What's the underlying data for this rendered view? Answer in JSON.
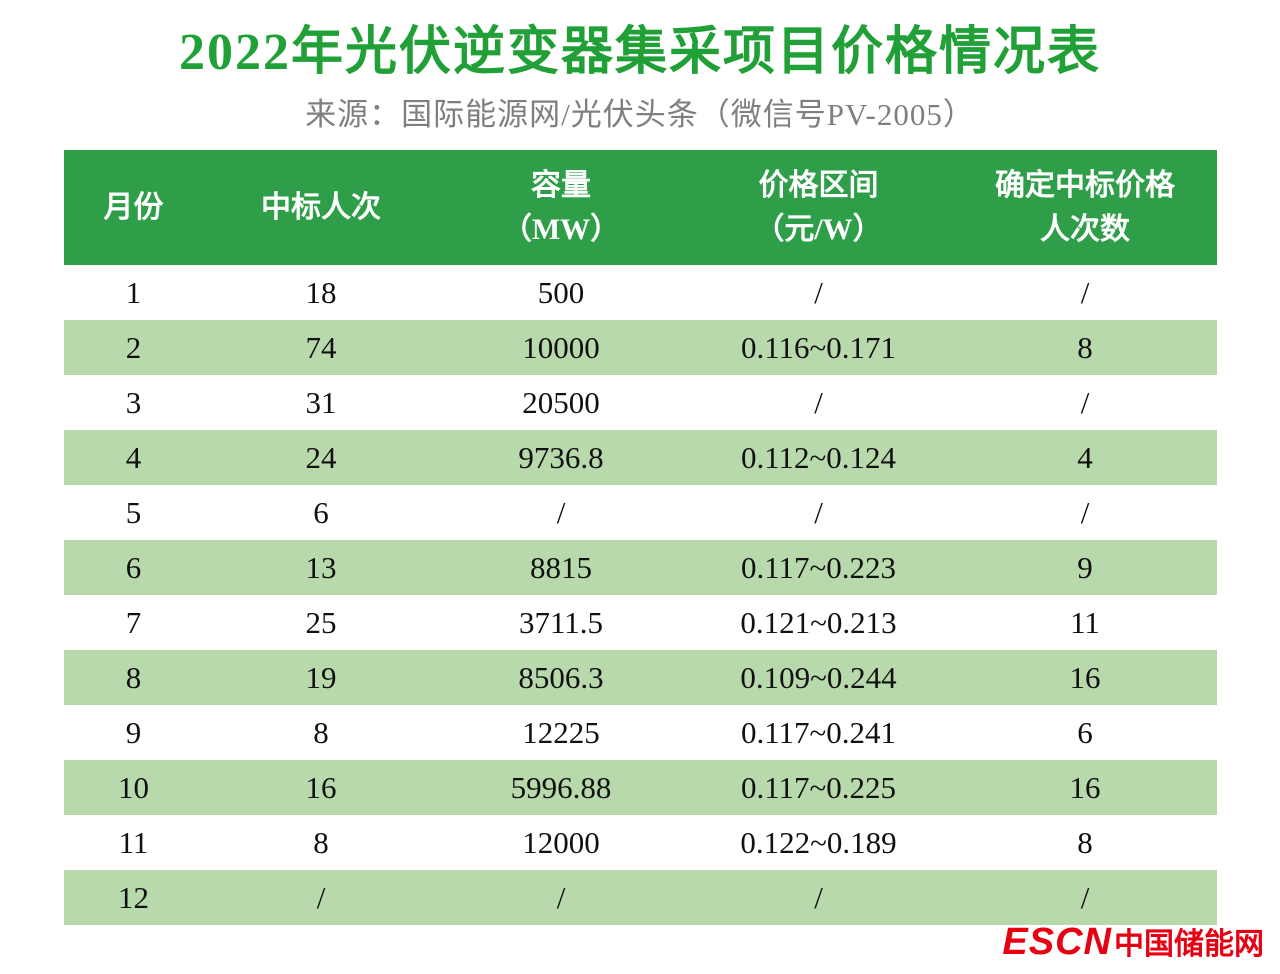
{
  "title": "2022年光伏逆变器集采项目价格情况表",
  "subtitle": "来源：国际能源网/光伏头条（微信号PV-2005）",
  "colors": {
    "title_green": "#21a038",
    "header_bg": "#2e9e49",
    "row_alt_bg": "#b8d9ab",
    "subtitle_gray": "#7f7f7f",
    "logo_red": "#e60012"
  },
  "logo": {
    "escn": "ESCN",
    "site_name": "中国储能网"
  },
  "chart_data": {
    "type": "table",
    "title": "2022年光伏逆变器集采项目价格情况表",
    "source": "来源：国际能源网/光伏头条（微信号PV-2005）",
    "columns": [
      "月份",
      "中标人次",
      "容量（MW）",
      "价格区间（元/W）",
      "确定中标价格人次数"
    ],
    "header_lines": [
      {
        "line1": "月份",
        "line2": ""
      },
      {
        "line1": "中标人次",
        "line2": ""
      },
      {
        "line1": "容量",
        "line2": "（MW）"
      },
      {
        "line1": "价格区间",
        "line2": "（元/W）"
      },
      {
        "line1": "确定中标价格",
        "line2": "人次数"
      }
    ],
    "rows": [
      [
        "1",
        "18",
        "500",
        "/",
        "/"
      ],
      [
        "2",
        "74",
        "10000",
        "0.116~0.171",
        "8"
      ],
      [
        "3",
        "31",
        "20500",
        "/",
        "/"
      ],
      [
        "4",
        "24",
        "9736.8",
        "0.112~0.124",
        "4"
      ],
      [
        "5",
        "6",
        "/",
        "/",
        "/"
      ],
      [
        "6",
        "13",
        "8815",
        "0.117~0.223",
        "9"
      ],
      [
        "7",
        "25",
        "3711.5",
        "0.121~0.213",
        "11"
      ],
      [
        "8",
        "19",
        "8506.3",
        "0.109~0.244",
        "16"
      ],
      [
        "9",
        "8",
        "12225",
        "0.117~0.241",
        "6"
      ],
      [
        "10",
        "16",
        "5996.88",
        "0.117~0.225",
        "16"
      ],
      [
        "11",
        "8",
        "12000",
        "0.122~0.189",
        "8"
      ],
      [
        "12",
        "/",
        "/",
        "/",
        "/"
      ]
    ]
  }
}
